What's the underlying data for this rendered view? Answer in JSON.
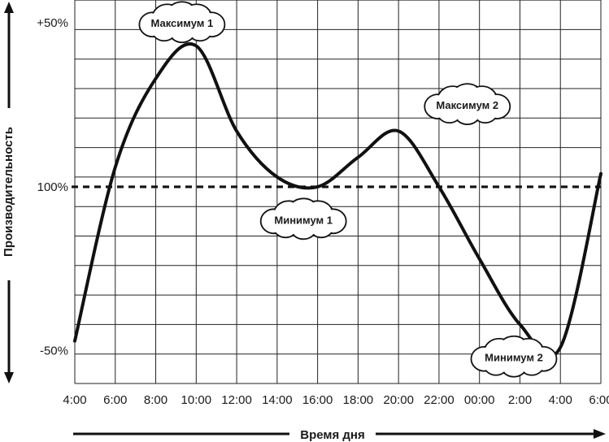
{
  "chart_data": {
    "type": "line",
    "xlabel": "Время дня",
    "ylabel": "Производительность",
    "x_ticks": [
      "4:00",
      "6:00",
      "8:00",
      "10:00",
      "12:00",
      "14:00",
      "16:00",
      "18:00",
      "20:00",
      "22:00",
      "00:00",
      "2:00",
      "4:00",
      "6:00"
    ],
    "y_ticks": [
      {
        "label": "+50%",
        "value": 50
      },
      {
        "label": "100%",
        "value": 0
      },
      {
        "label": "-50%",
        "value": -50
      }
    ],
    "ylim": [
      -60,
      57
    ],
    "grid": true,
    "reference_line": {
      "value": 0,
      "style": "dashed"
    },
    "series": [
      {
        "points": [
          {
            "x": 0,
            "y": -47
          },
          {
            "x": 2,
            "y": 6
          },
          {
            "x": 4,
            "y": 33
          },
          {
            "x": 6,
            "y": 43
          },
          {
            "x": 8,
            "y": 17
          },
          {
            "x": 10,
            "y": 3
          },
          {
            "x": 12,
            "y": 0
          },
          {
            "x": 14,
            "y": 9
          },
          {
            "x": 16,
            "y": 17
          },
          {
            "x": 18,
            "y": 0
          },
          {
            "x": 20,
            "y": -22
          },
          {
            "x": 22,
            "y": -42
          },
          {
            "x": 24,
            "y": -49
          },
          {
            "x": 26,
            "y": 4
          }
        ]
      }
    ],
    "annotations": [
      {
        "text": "Максимум 1",
        "x": 5.3,
        "y": 50
      },
      {
        "text": "Максимум 2",
        "x": 19.4,
        "y": 25
      },
      {
        "text": "Минимум 1",
        "x": 11.3,
        "y": -10
      },
      {
        "text": "Минимум 2",
        "x": 21.7,
        "y": -52
      }
    ]
  }
}
